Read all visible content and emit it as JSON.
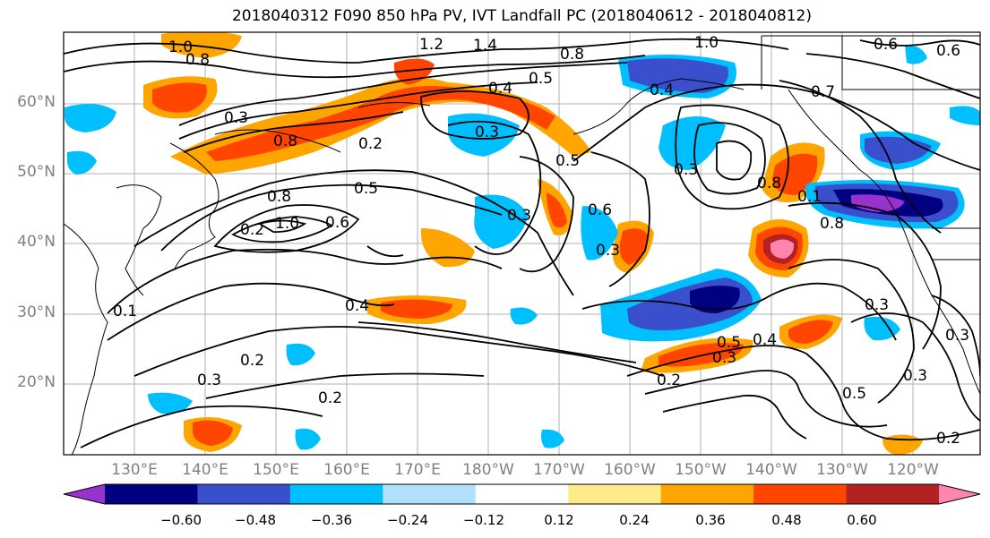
{
  "title": "2018040312 F090 850 hPa PV, IVT Landfall PC (2018040612 - 2018040812)",
  "latitude_labels": [
    "60°N",
    "50°N",
    "40°N",
    "30°N",
    "20°N"
  ],
  "longitude_labels": [
    "130°E",
    "140°E",
    "150°E",
    "160°E",
    "170°E",
    "180°W",
    "170°W",
    "160°W",
    "150°W",
    "140°W",
    "130°W",
    "120°W"
  ],
  "contour_labels": [
    "1.0",
    "0.8",
    "1.2",
    "1.4",
    "0.8",
    "1.0",
    "0.6",
    "0.6",
    "0.4",
    "0.5",
    "0.4",
    "0.7",
    "0.3",
    "0.8",
    "0.2",
    "0.3",
    "0.5",
    "0.5",
    "0.6",
    "0.3",
    "0.6",
    "0.8",
    "1.0",
    "0.3",
    "0.8",
    "0.4",
    "0.3",
    "0.1",
    "0.2",
    "0.3",
    "0.2",
    "0.3",
    "0.5",
    "0.3",
    "0.2",
    "0.4",
    "0.5",
    "0.3",
    "0.2",
    "0.3",
    "0.2",
    "0.8",
    "0.1"
  ],
  "colorbar": {
    "ticks": [
      "−0.60",
      "−0.48",
      "−0.36",
      "−0.24",
      "−0.12",
      "0.12",
      "0.24",
      "0.36",
      "0.48",
      "0.60"
    ],
    "colors": [
      "#9932cc",
      "#000080",
      "#3a4fcc",
      "#00bfff",
      "#b0e0fa",
      "#ffffff",
      "#ffeb8a",
      "#ffa500",
      "#ff4500",
      "#b22222",
      "#ff85b0"
    ]
  },
  "field_colors": {
    "pos_weak": "#ffeb8a",
    "pos_mid": "#ffa500",
    "pos_strong": "#ff4500",
    "pos_stronger": "#b22222",
    "pos_max": "#ff85b0",
    "neg_weak": "#b0e0fa",
    "neg_mid": "#00bfff",
    "neg_strong": "#3a4fcc",
    "neg_stronger": "#000080",
    "neg_max": "#9932cc"
  }
}
